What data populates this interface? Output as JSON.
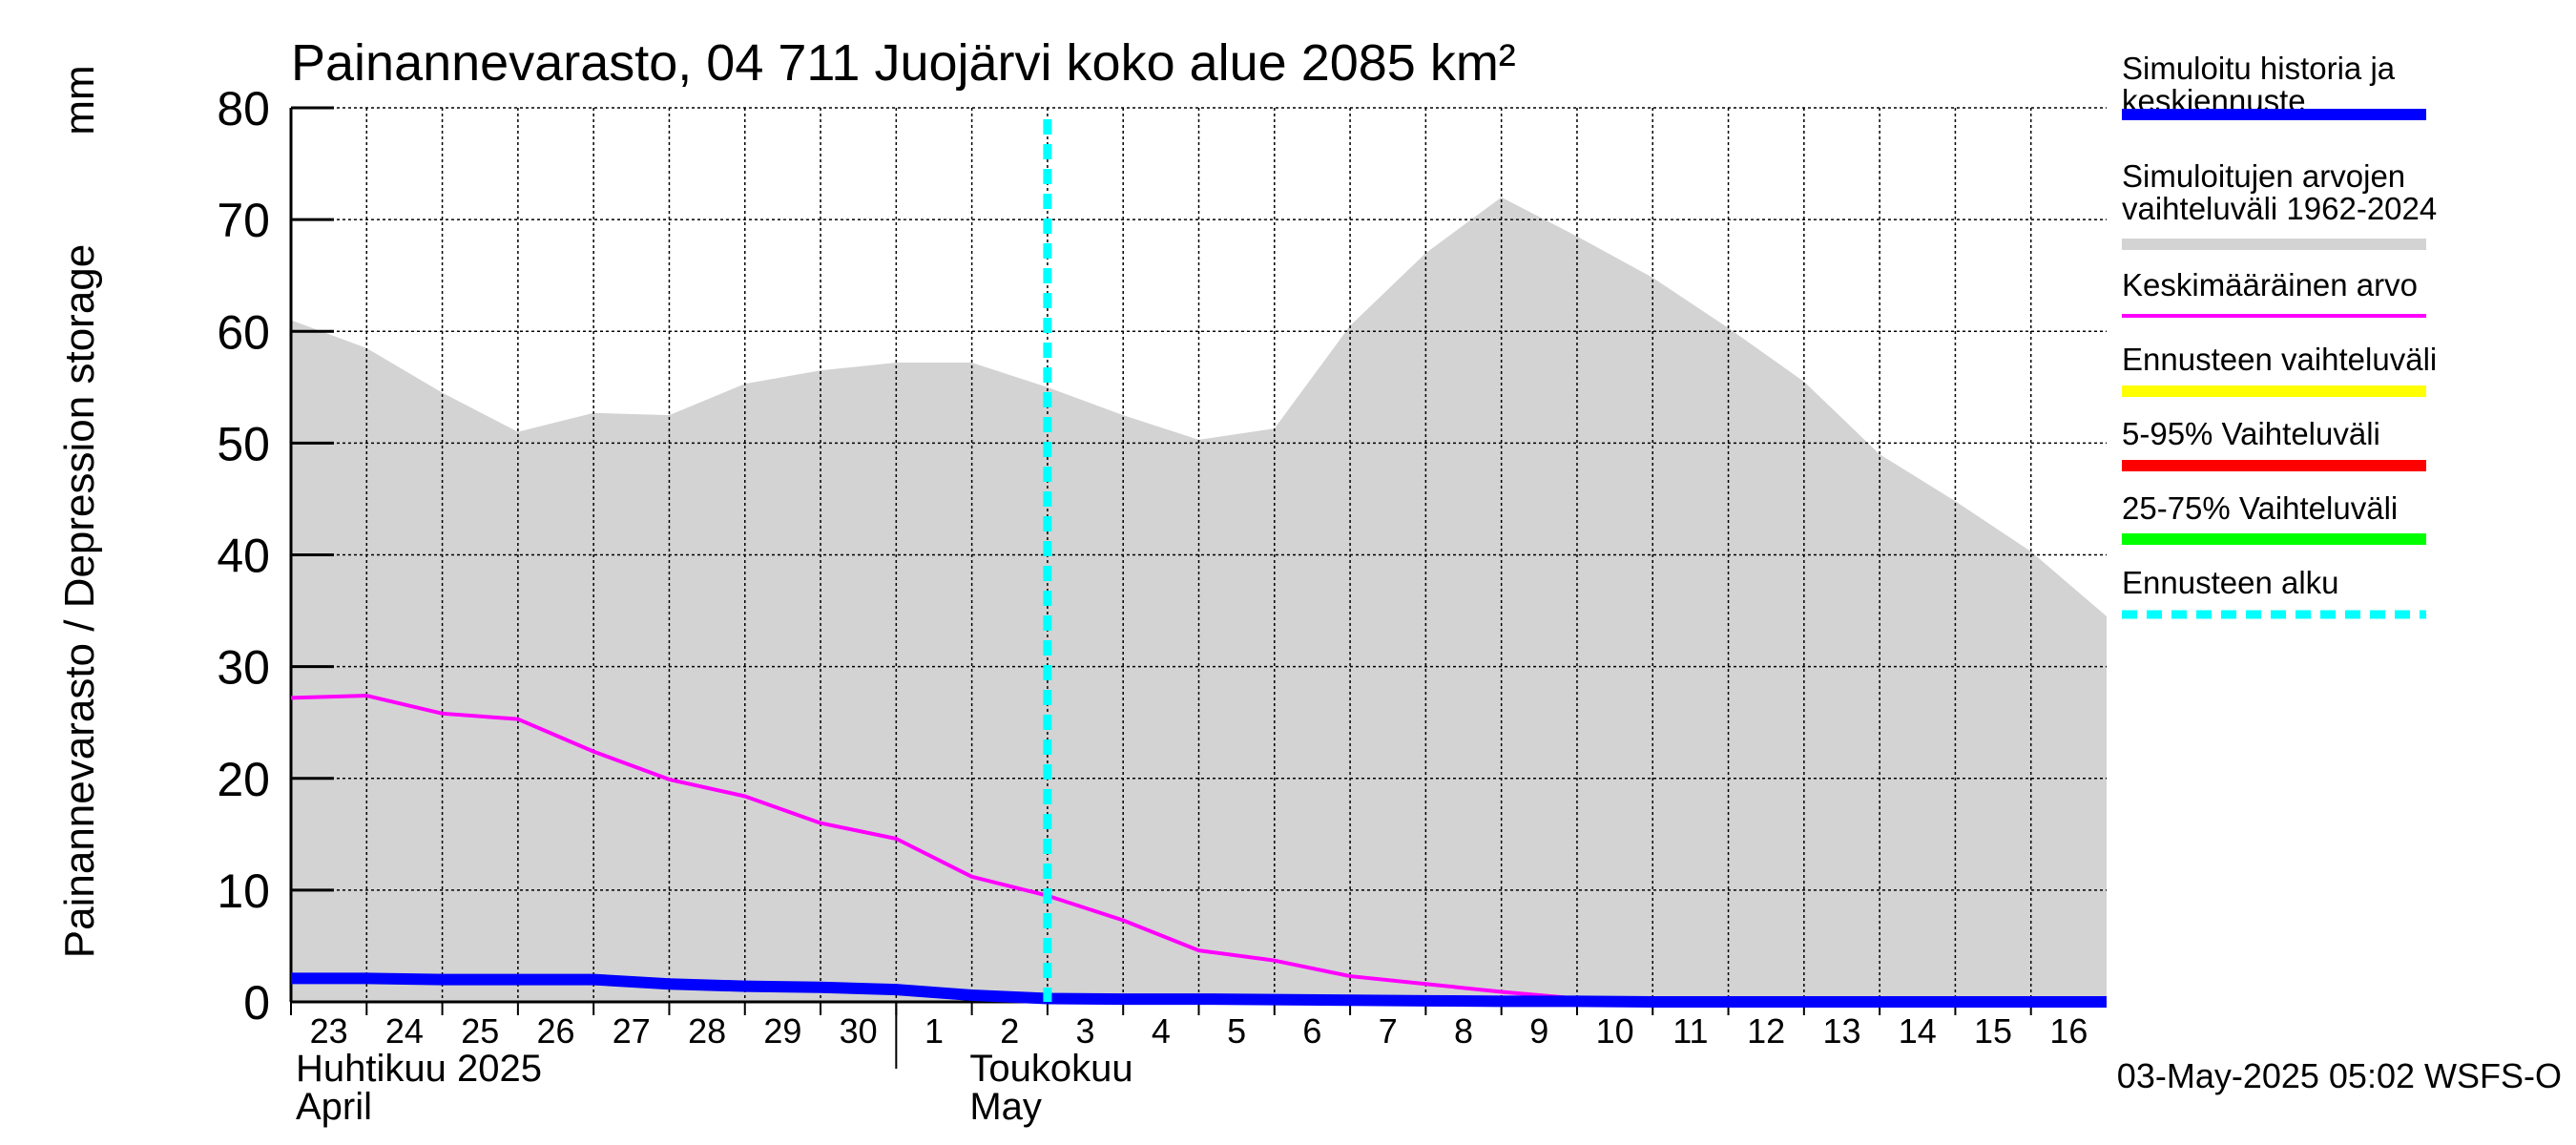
{
  "chart_data": {
    "type": "area",
    "title": "Painannevarasto, 04 711 Juojärvi koko alue 2085 km²",
    "ylabel": "Painannevarasto / Depression storage",
    "yunit": "mm",
    "ylim": [
      0,
      80
    ],
    "yticks": [
      0,
      10,
      20,
      30,
      40,
      50,
      60,
      70,
      80
    ],
    "xlim": [
      "2025-04-23",
      "2025-05-17"
    ],
    "x": [
      "2025-04-23",
      "2025-04-24",
      "2025-04-25",
      "2025-04-26",
      "2025-04-27",
      "2025-04-28",
      "2025-04-29",
      "2025-04-30",
      "2025-05-01",
      "2025-05-02",
      "2025-05-03",
      "2025-05-04",
      "2025-05-05",
      "2025-05-06",
      "2025-05-07",
      "2025-05-08",
      "2025-05-09",
      "2025-05-10",
      "2025-05-11",
      "2025-05-12",
      "2025-05-13",
      "2025-05-14",
      "2025-05-15",
      "2025-05-16",
      "2025-05-17"
    ],
    "xtick_labels": [
      "23",
      "24",
      "25",
      "26",
      "27",
      "28",
      "29",
      "30",
      "1",
      "2",
      "3",
      "4",
      "5",
      "6",
      "7",
      "8",
      "9",
      "10",
      "11",
      "12",
      "13",
      "14",
      "15",
      "16"
    ],
    "month_labels": [
      {
        "line1": "Huhtikuu  2025",
        "line2": "April"
      },
      {
        "line1": "Toukokuu",
        "line2": "May"
      }
    ],
    "grid": true,
    "forecast_start": "2025-05-03",
    "series": [
      {
        "name": "Simuloitujen arvojen vaihteluväli 1962-2024",
        "kind": "band",
        "color": "#d3d3d3",
        "lower": [
          0,
          0,
          0,
          0,
          0,
          0,
          0,
          0,
          0,
          0,
          0,
          0,
          0,
          0,
          0,
          0,
          0,
          0,
          0,
          0,
          0,
          0,
          0,
          0,
          0
        ],
        "upper": [
          61,
          58.5,
          54.5,
          51,
          52.7,
          52.5,
          55.3,
          56.5,
          57.2,
          57.2,
          55,
          52.5,
          50.3,
          51.3,
          60.5,
          67,
          72,
          68.5,
          64.8,
          60.3,
          55.5,
          49,
          44.8,
          40.3,
          34.5
        ]
      },
      {
        "name": "Keskimääräinen arvo",
        "kind": "line",
        "color": "#ff00ff",
        "values": [
          27.2,
          27.4,
          25.8,
          25.3,
          22.4,
          19.9,
          18.4,
          16,
          14.6,
          11.2,
          9.5,
          7.3,
          4.6,
          3.7,
          2.3,
          1.6,
          0.9,
          0.3,
          0.1,
          0.1,
          0.05,
          0,
          0,
          0,
          0
        ]
      },
      {
        "name": "Simuloitu historia ja keskiennuste",
        "kind": "line",
        "color": "#0000ff",
        "values": [
          2.1,
          2.1,
          2.0,
          2.0,
          2.0,
          1.6,
          1.4,
          1.3,
          1.1,
          0.6,
          0.3,
          0.25,
          0.25,
          0.2,
          0.15,
          0.1,
          0.05,
          0.05,
          0,
          0,
          0,
          0,
          0,
          0,
          0
        ]
      }
    ],
    "legend": {
      "placement": "right",
      "entries": [
        {
          "label": "Simuloitu historia ja keskiennuste",
          "color": "#0000ff",
          "style": "solid-thick"
        },
        {
          "label": "Simuloitujen arvojen vaihteluväli 1962-2024",
          "color": "#d3d3d3",
          "style": "solid-thick"
        },
        {
          "label": "Keskimääräinen arvo",
          "color": "#ff00ff",
          "style": "solid-thin"
        },
        {
          "label": "Ennusteen vaihteluväli",
          "color": "#ffff00",
          "style": "solid-thick"
        },
        {
          "label": "5-95% Vaihteluväli",
          "color": "#ff0000",
          "style": "solid-thick"
        },
        {
          "label": "25-75% Vaihteluväli",
          "color": "#00ff00",
          "style": "solid-thick"
        },
        {
          "label": "Ennusteen alku",
          "color": "#00ffff",
          "style": "dashed"
        }
      ]
    },
    "footer": "03-May-2025 05:02 WSFS-O"
  }
}
